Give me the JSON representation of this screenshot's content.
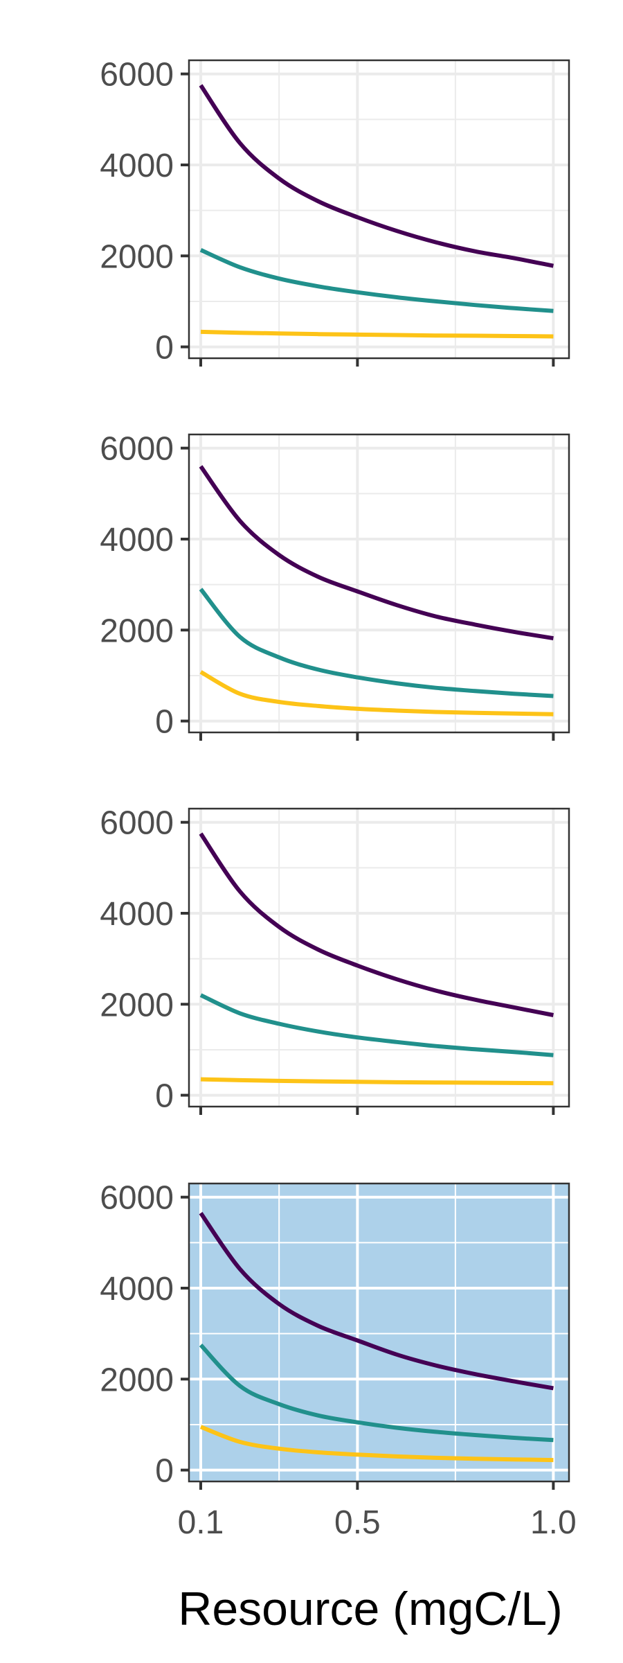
{
  "colors": {
    "series_1": "#440154",
    "series_2": "#21908C",
    "series_3": "#FDC317",
    "highlight_panel_bg": "#ADD1EA",
    "grid": "#EBEBEB",
    "grid_on_highlight": "#FFFFFF",
    "frame": "#333333",
    "tick_text": "#4d4d4d"
  },
  "chart_data": [
    {
      "type": "line",
      "panel_background": "white",
      "grid": true,
      "x": [
        0.1,
        0.2,
        0.3,
        0.4,
        0.5,
        0.6,
        0.7,
        0.8,
        0.9,
        1.0
      ],
      "xlim": [
        0.07,
        1.04
      ],
      "ylim": [
        -250,
        6300
      ],
      "yticks": [
        "0",
        "2000",
        "4000",
        "6000"
      ],
      "series": [
        {
          "values": [
            5750,
            4480,
            3700,
            3200,
            2850,
            2550,
            2300,
            2100,
            1950,
            1780
          ]
        },
        {
          "values": [
            2130,
            1750,
            1500,
            1330,
            1200,
            1090,
            1000,
            920,
            850,
            790
          ]
        },
        {
          "values": [
            330,
            310,
            295,
            280,
            270,
            260,
            250,
            245,
            238,
            230
          ]
        }
      ]
    },
    {
      "type": "line",
      "panel_background": "white",
      "grid": true,
      "x": [
        0.1,
        0.2,
        0.3,
        0.4,
        0.5,
        0.6,
        0.7,
        0.8,
        0.9,
        1.0
      ],
      "xlim": [
        0.07,
        1.04
      ],
      "ylim": [
        -250,
        6300
      ],
      "yticks": [
        "0",
        "2000",
        "4000",
        "6000"
      ],
      "series": [
        {
          "values": [
            5600,
            4400,
            3650,
            3170,
            2850,
            2550,
            2300,
            2120,
            1960,
            1820
          ]
        },
        {
          "values": [
            2900,
            1850,
            1400,
            1130,
            960,
            830,
            730,
            660,
            600,
            550
          ]
        },
        {
          "values": [
            1080,
            600,
            420,
            330,
            270,
            230,
            200,
            180,
            165,
            150
          ]
        }
      ]
    },
    {
      "type": "line",
      "panel_background": "white",
      "grid": true,
      "x": [
        0.1,
        0.2,
        0.3,
        0.4,
        0.5,
        0.6,
        0.7,
        0.8,
        0.9,
        1.0
      ],
      "xlim": [
        0.07,
        1.04
      ],
      "ylim": [
        -250,
        6300
      ],
      "yticks": [
        "0",
        "2000",
        "4000",
        "6000"
      ],
      "series": [
        {
          "values": [
            5750,
            4480,
            3700,
            3200,
            2850,
            2550,
            2300,
            2100,
            1930,
            1760
          ]
        },
        {
          "values": [
            2200,
            1800,
            1570,
            1400,
            1270,
            1170,
            1080,
            1010,
            950,
            880
          ]
        },
        {
          "values": [
            350,
            330,
            315,
            305,
            295,
            285,
            280,
            275,
            270,
            265
          ]
        }
      ]
    },
    {
      "type": "line",
      "panel_background": "highlighted",
      "grid": true,
      "x": [
        0.1,
        0.2,
        0.3,
        0.4,
        0.5,
        0.6,
        0.7,
        0.8,
        0.9,
        1.0
      ],
      "xlim": [
        0.07,
        1.04
      ],
      "ylim": [
        -250,
        6300
      ],
      "yticks": [
        "0",
        "2000",
        "4000",
        "6000"
      ],
      "xticks": [
        "0.1",
        "0.5",
        "1.0"
      ],
      "xlabel": "Resource (mgC/L)",
      "series": [
        {
          "values": [
            5650,
            4420,
            3650,
            3170,
            2850,
            2540,
            2300,
            2110,
            1950,
            1800
          ]
        },
        {
          "values": [
            2750,
            1850,
            1450,
            1200,
            1050,
            930,
            840,
            770,
            710,
            660
          ]
        },
        {
          "values": [
            950,
            620,
            470,
            390,
            340,
            300,
            270,
            250,
            235,
            220
          ]
        }
      ]
    }
  ]
}
